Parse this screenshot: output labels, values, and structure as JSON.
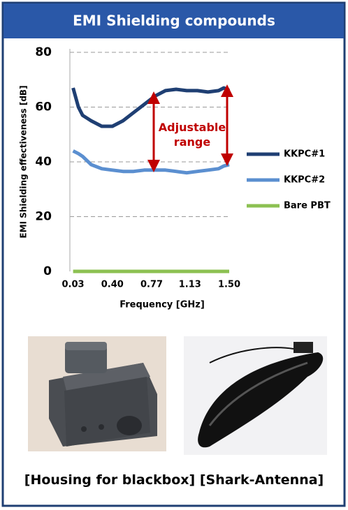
{
  "chart_data": {
    "type": "line",
    "title": "EMI Shielding compounds",
    "y_label": "EMI Shielding effectiveness [dB]",
    "x_label": "Frequency [GHz]",
    "annotation": "Adjustable range",
    "x": [
      0.03,
      0.08,
      0.12,
      0.2,
      0.3,
      0.4,
      0.5,
      0.6,
      0.7,
      0.8,
      0.9,
      1.0,
      1.1,
      1.2,
      1.3,
      1.4,
      1.45,
      1.5
    ],
    "series": [
      {
        "name": "KKPC#1",
        "color": "#1f3f73",
        "values": [
          67,
          60,
          57,
          55,
          53,
          53,
          55,
          58,
          61,
          64,
          66,
          66.5,
          66,
          66,
          65.5,
          66,
          67,
          66
        ]
      },
      {
        "name": "KKPC#2",
        "color": "#5b8fd0",
        "values": [
          44,
          43,
          42,
          39,
          37.5,
          37,
          36.5,
          36.5,
          37,
          37,
          37,
          36.5,
          36,
          36.5,
          37,
          37.5,
          38.5,
          39
        ]
      },
      {
        "name": "Bare PBT",
        "color": "#8cc152",
        "values": [
          0,
          0,
          0,
          0,
          0,
          0,
          0,
          0,
          0,
          0,
          0,
          0,
          0,
          0,
          0,
          0,
          0,
          0
        ]
      }
    ],
    "xlim": [
      0,
      1.5
    ],
    "ylim": [
      0,
      80
    ],
    "xticks": [
      0.03,
      {
        "value": 0.4,
        "label": "0.40"
      },
      0.77,
      1.13,
      {
        "value": 1.5,
        "label": "1.50"
      }
    ],
    "yticks": [
      0,
      20,
      40,
      60,
      80
    ],
    "grid": true
  },
  "captions": [
    "[Housing for blackbox]",
    "[Shark-Antenna]"
  ]
}
